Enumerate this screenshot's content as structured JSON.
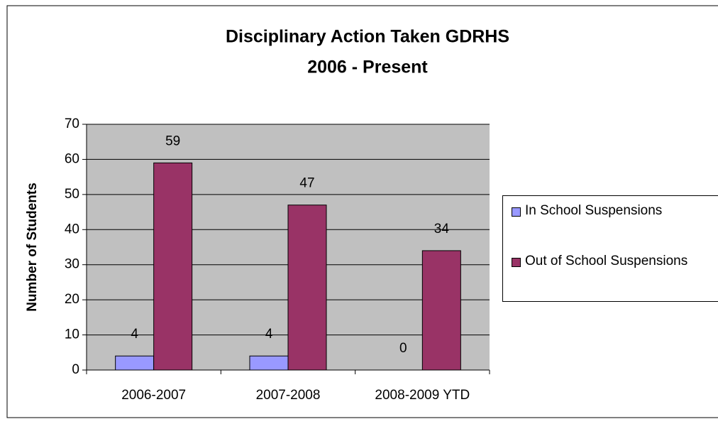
{
  "chart_data": {
    "type": "bar",
    "title": "Disciplinary Action Taken GDRHS",
    "subtitle": "2006 - Present",
    "y_label": "Number of Students",
    "categories": [
      "2006-2007",
      "2007-2008",
      "2008-2009 YTD"
    ],
    "series": [
      {
        "name": "In School Suspensions",
        "color": "#9999ff",
        "values": [
          4,
          4,
          0
        ]
      },
      {
        "name": "Out of School Suspensions",
        "color": "#993366",
        "values": [
          59,
          47,
          34
        ]
      }
    ],
    "ylim": [
      0,
      70
    ],
    "yticks": [
      0,
      10,
      20,
      30,
      40,
      50,
      60,
      70
    ],
    "grid": true,
    "legend": "right"
  }
}
